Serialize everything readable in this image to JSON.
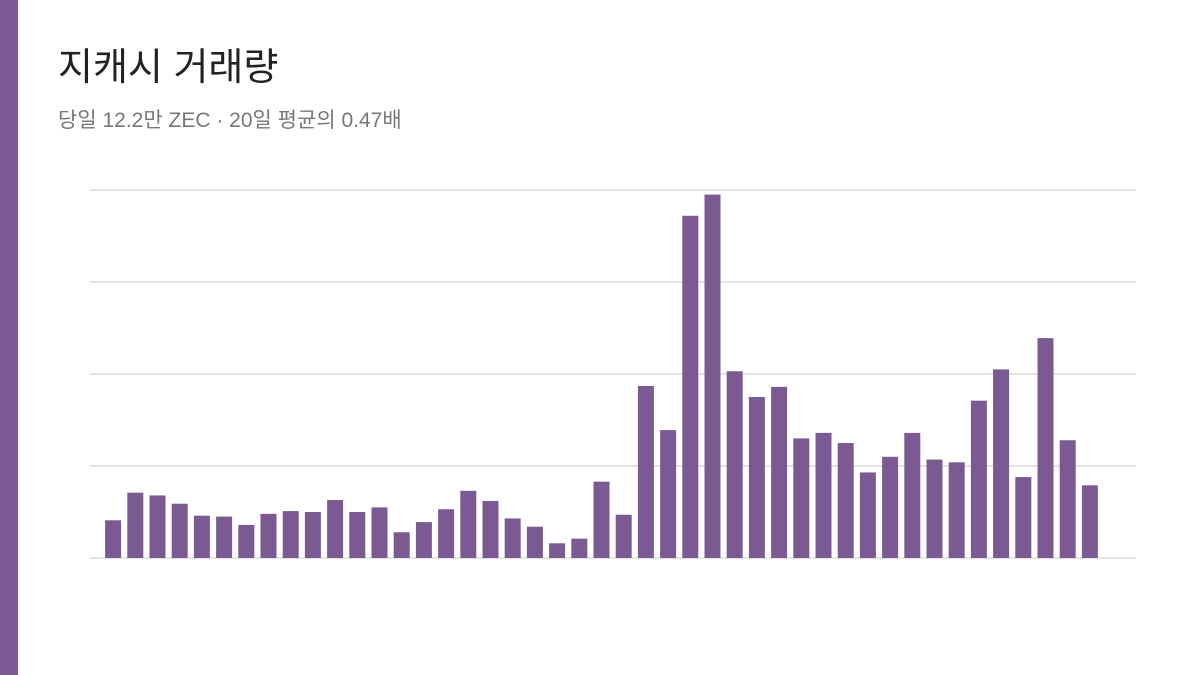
{
  "chart_data": {
    "type": "bar",
    "title": "지캐시 거래량",
    "subtitle": "당일 12.2만 ZEC · 20일 평균의 0.47배",
    "values": [
      0.41,
      0.71,
      0.68,
      0.59,
      0.46,
      0.45,
      0.36,
      0.48,
      0.51,
      0.5,
      0.63,
      0.5,
      0.55,
      0.28,
      0.39,
      0.53,
      0.73,
      0.62,
      0.43,
      0.34,
      0.16,
      0.21,
      0.83,
      0.47,
      1.87,
      1.39,
      3.72,
      3.95,
      2.03,
      1.75,
      1.86,
      1.3,
      1.36,
      1.25,
      0.93,
      1.1,
      1.36,
      1.07,
      1.04,
      1.71,
      2.05,
      0.88,
      2.39,
      1.28,
      0.79
    ],
    "color": "#7b5a93",
    "ylim": [
      0,
      4
    ],
    "yticks": [
      0,
      1,
      2,
      3,
      4
    ],
    "grid": true
  }
}
